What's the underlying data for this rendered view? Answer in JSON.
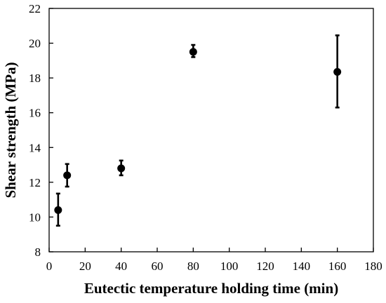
{
  "chart_data": {
    "type": "scatter",
    "title": "",
    "xlabel": "Eutectic temperature holding time (min)",
    "ylabel": "Shear strength (MPa)",
    "xlim": [
      0,
      180
    ],
    "ylim": [
      8,
      22
    ],
    "xticks": [
      0,
      20,
      40,
      60,
      80,
      100,
      120,
      140,
      160,
      180
    ],
    "yticks": [
      8,
      10,
      12,
      14,
      16,
      18,
      20,
      22
    ],
    "xtick_labels": [
      "0",
      "20",
      "40",
      "60",
      "80",
      "100",
      "120",
      "140",
      "160",
      "180"
    ],
    "ytick_labels": [
      "8",
      "10",
      "12",
      "14",
      "16",
      "18",
      "20",
      "22"
    ],
    "grid": false,
    "legend": "none",
    "marker_color": "#000000",
    "series": [
      {
        "x": [
          5,
          10,
          40,
          80,
          160
        ],
        "y": [
          10.4,
          12.4,
          12.8,
          19.5,
          18.35
        ],
        "error_low": [
          9.5,
          11.75,
          12.4,
          19.2,
          16.3
        ],
        "error_high": [
          11.35,
          13.05,
          13.25,
          19.9,
          20.45
        ]
      }
    ]
  }
}
